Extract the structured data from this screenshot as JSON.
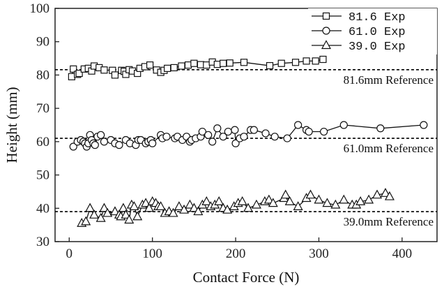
{
  "chart_data": {
    "type": "line",
    "title": "",
    "xlabel": "Contact Force (N)",
    "ylabel": "Height (mm)",
    "xlim": [
      -17,
      442
    ],
    "ylim": [
      30,
      100
    ],
    "xticks": [
      0,
      100,
      200,
      300,
      400
    ],
    "yticks": [
      30,
      40,
      50,
      60,
      70,
      80,
      90,
      100
    ],
    "legend_position": "top-right",
    "series": [
      {
        "name": "81.6 Exp",
        "marker": "square",
        "x": [
          3,
          5,
          10,
          12,
          18,
          23,
          27,
          30,
          36,
          42,
          52,
          55,
          63,
          66,
          68,
          72,
          76,
          82,
          85,
          91,
          97,
          105,
          110,
          114,
          118,
          126,
          135,
          143,
          150,
          158,
          165,
          172,
          178,
          185,
          193,
          210,
          241,
          255,
          272,
          285,
          296,
          305
        ],
        "y": [
          79.5,
          81.8,
          80.2,
          80.5,
          81.8,
          82.0,
          81.2,
          82.7,
          82.2,
          81.5,
          81.4,
          80.0,
          81.4,
          81.1,
          80.2,
          81.6,
          81.2,
          80.5,
          82.0,
          82.5,
          83.0,
          81.5,
          80.8,
          81.4,
          82.0,
          82.2,
          82.7,
          83.0,
          83.5,
          83.1,
          83.0,
          83.9,
          83.2,
          83.5,
          83.6,
          83.8,
          82.8,
          83.5,
          83.8,
          84.2,
          84.2,
          84.7
        ]
      },
      {
        "name": "61.0 Exp",
        "marker": "circle",
        "x": [
          5,
          10,
          14,
          17,
          19,
          21,
          23,
          25,
          27,
          29,
          31,
          34,
          38,
          42,
          50,
          55,
          60,
          68,
          73,
          80,
          83,
          86,
          92,
          95,
          98,
          100,
          110,
          112,
          117,
          127,
          130,
          136,
          141,
          145,
          147,
          152,
          158,
          160,
          167,
          172,
          178,
          185,
          191,
          199,
          200,
          205,
          210,
          218,
          222,
          236,
          247,
          262,
          275,
          285,
          288,
          306,
          330,
          374,
          426
        ],
        "y": [
          58.5,
          60.0,
          60.5,
          60.0,
          59.5,
          58.5,
          59.5,
          62.0,
          60.5,
          59.5,
          59.0,
          61.5,
          62.0,
          60.0,
          60.5,
          59.5,
          59.0,
          60.5,
          59.5,
          59.0,
          60.5,
          60.5,
          59.5,
          60.0,
          60.5,
          59.5,
          62.0,
          61.0,
          61.5,
          61.0,
          61.5,
          60.5,
          61.5,
          60.0,
          60.5,
          61.0,
          61.5,
          63.0,
          62.0,
          60.0,
          64.0,
          61.5,
          63.0,
          63.5,
          59.5,
          61.0,
          61.5,
          63.5,
          63.5,
          62.5,
          61.5,
          61.0,
          65.0,
          63.5,
          63.0,
          63.0,
          65.0,
          64.0,
          65.0
        ]
      },
      {
        "name": "39.0 Exp",
        "marker": "triangle",
        "x": [
          15,
          20,
          25,
          30,
          38,
          42,
          46,
          55,
          60,
          62,
          65,
          68,
          72,
          75,
          78,
          82,
          88,
          92,
          96,
          100,
          104,
          107,
          110,
          115,
          120,
          125,
          132,
          138,
          145,
          150,
          155,
          160,
          165,
          170,
          175,
          180,
          185,
          190,
          198,
          203,
          208,
          215,
          225,
          235,
          240,
          245,
          258,
          260,
          265,
          275,
          285,
          290,
          300,
          310,
          320,
          330,
          340,
          345,
          350,
          360,
          370,
          380,
          385
        ],
        "y": [
          35.5,
          36.0,
          40.0,
          38.0,
          37.0,
          40.0,
          38.5,
          39.0,
          38.0,
          37.5,
          40.0,
          38.0,
          36.5,
          41.0,
          40.5,
          37.5,
          41.0,
          41.5,
          40.0,
          42.0,
          41.5,
          40.5,
          40.5,
          38.5,
          39.0,
          38.5,
          40.5,
          39.5,
          41.0,
          40.0,
          39.0,
          41.0,
          42.0,
          40.5,
          41.0,
          42.0,
          40.0,
          39.5,
          40.5,
          41.5,
          42.0,
          40.0,
          41.0,
          42.0,
          42.5,
          41.5,
          43.0,
          44.0,
          42.0,
          40.5,
          43.0,
          44.0,
          42.5,
          41.5,
          41.0,
          42.5,
          41.0,
          41.0,
          42.0,
          42.5,
          44.0,
          44.5,
          43.5
        ]
      }
    ],
    "references": [
      {
        "value": 81.6,
        "label": "81.6mm Reference"
      },
      {
        "value": 61.0,
        "label": "61.0mm Reference"
      },
      {
        "value": 39.0,
        "label": "39.0mm Reference"
      }
    ]
  }
}
